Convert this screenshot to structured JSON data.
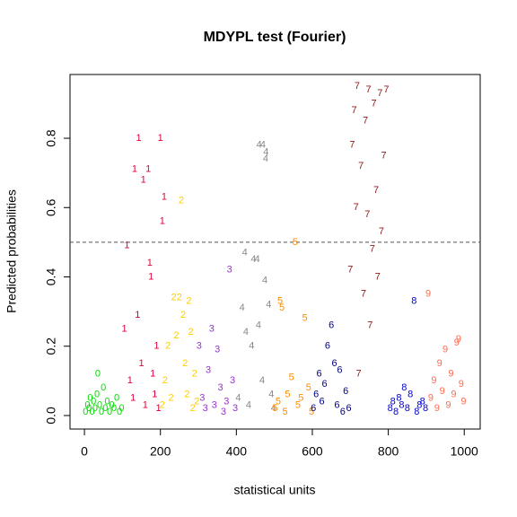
{
  "chart_data": {
    "type": "scatter",
    "title": "MDYPL test (Fourier)",
    "x_label": "statistical units",
    "y_label": "Predicted probabilities",
    "xlim": [
      -38,
      1042
    ],
    "ylim": [
      -0.039,
      0.984
    ],
    "xticks": [
      0,
      200,
      400,
      600,
      800,
      1000
    ],
    "yticks": [
      {
        "value": 0,
        "label": "0.0"
      },
      0.2,
      0.4,
      0.6,
      0.8
    ],
    "hline": 0.5,
    "series": [
      {
        "marker": "0",
        "color": "#00dd00",
        "x": [
          3,
          8,
          12,
          15,
          20,
          24,
          28,
          33,
          35,
          40,
          45,
          50,
          55,
          60,
          66,
          72,
          78,
          85,
          92,
          98
        ],
        "values": [
          0.01,
          0.03,
          0.02,
          0.05,
          0.01,
          0.04,
          0.02,
          0.06,
          0.12,
          0.03,
          0.01,
          0.08,
          0.02,
          0.04,
          0.01,
          0.03,
          0.02,
          0.05,
          0.01,
          0.02
        ]
      },
      {
        "marker": "1",
        "color": "#e0003a",
        "x": [
          105,
          112,
          120,
          128,
          132,
          140,
          143,
          150,
          155,
          160,
          168,
          172,
          175,
          180,
          185,
          190,
          195,
          200,
          205,
          210
        ],
        "values": [
          0.25,
          0.49,
          0.1,
          0.05,
          0.71,
          0.29,
          0.8,
          0.15,
          0.68,
          0.03,
          0.71,
          0.44,
          0.4,
          0.12,
          0.06,
          0.2,
          0.02,
          0.8,
          0.56,
          0.63
        ]
      },
      {
        "marker": "2",
        "color": "#ffcc00",
        "x": [
          205,
          212,
          220,
          228,
          235,
          242,
          250,
          255,
          260,
          265,
          270,
          275,
          280,
          285,
          290,
          296
        ],
        "values": [
          0.03,
          0.1,
          0.2,
          0.05,
          0.34,
          0.23,
          0.34,
          0.62,
          0.29,
          0.15,
          0.06,
          0.33,
          0.24,
          0.02,
          0.12,
          0.04
        ]
      },
      {
        "marker": "3",
        "color": "#9932cc",
        "x": [
          302,
          310,
          318,
          326,
          335,
          342,
          350,
          358,
          366,
          374,
          382,
          390,
          397
        ],
        "values": [
          0.2,
          0.05,
          0.02,
          0.13,
          0.25,
          0.03,
          0.19,
          0.08,
          0.01,
          0.04,
          0.42,
          0.1,
          0.02
        ]
      },
      {
        "marker": "4",
        "color": "#888888",
        "x": [
          405,
          415,
          422,
          425,
          432,
          440,
          445,
          455,
          458,
          460,
          468,
          470,
          475,
          477,
          478,
          485,
          492,
          498
        ],
        "values": [
          0.05,
          0.31,
          0.47,
          0.24,
          0.03,
          0.2,
          0.45,
          0.45,
          0.26,
          0.78,
          0.1,
          0.78,
          0.39,
          0.74,
          0.76,
          0.32,
          0.06,
          0.02
        ]
      },
      {
        "marker": "5",
        "color": "#ff8c00",
        "x": [
          502,
          510,
          515,
          520,
          528,
          535,
          545,
          555,
          562,
          570,
          580,
          590,
          598
        ],
        "values": [
          0.02,
          0.04,
          0.33,
          0.31,
          0.01,
          0.06,
          0.11,
          0.5,
          0.03,
          0.05,
          0.28,
          0.08,
          0.01
        ]
      },
      {
        "marker": "6",
        "color": "#000080",
        "x": [
          603,
          610,
          618,
          625,
          632,
          640,
          650,
          658,
          665,
          672,
          680,
          688,
          696
        ],
        "values": [
          0.02,
          0.06,
          0.12,
          0.04,
          0.09,
          0.2,
          0.26,
          0.15,
          0.03,
          0.13,
          0.01,
          0.07,
          0.02
        ]
      },
      {
        "marker": "7",
        "color": "#8b1a1a",
        "x": [
          700,
          705,
          710,
          715,
          718,
          722,
          728,
          735,
          740,
          745,
          748,
          752,
          758,
          762,
          768,
          772,
          778,
          782,
          788,
          795
        ],
        "values": [
          0.42,
          0.78,
          0.88,
          0.6,
          0.95,
          0.12,
          0.72,
          0.35,
          0.85,
          0.58,
          0.94,
          0.26,
          0.48,
          0.9,
          0.65,
          0.4,
          0.93,
          0.53,
          0.75,
          0.94
        ]
      },
      {
        "marker": "8",
        "color": "#0000cd",
        "x": [
          805,
          812,
          820,
          828,
          835,
          842,
          850,
          858,
          868,
          875,
          882,
          890,
          898
        ],
        "values": [
          0.02,
          0.04,
          0.01,
          0.05,
          0.03,
          0.08,
          0.02,
          0.06,
          0.33,
          0.01,
          0.03,
          0.04,
          0.02
        ]
      },
      {
        "marker": "9",
        "color": "#ff6a50",
        "x": [
          905,
          912,
          920,
          928,
          935,
          942,
          950,
          958,
          965,
          972,
          980,
          985,
          992,
          998
        ],
        "values": [
          0.35,
          0.05,
          0.1,
          0.02,
          0.15,
          0.07,
          0.19,
          0.03,
          0.12,
          0.06,
          0.21,
          0.22,
          0.09,
          0.04
        ]
      }
    ]
  }
}
